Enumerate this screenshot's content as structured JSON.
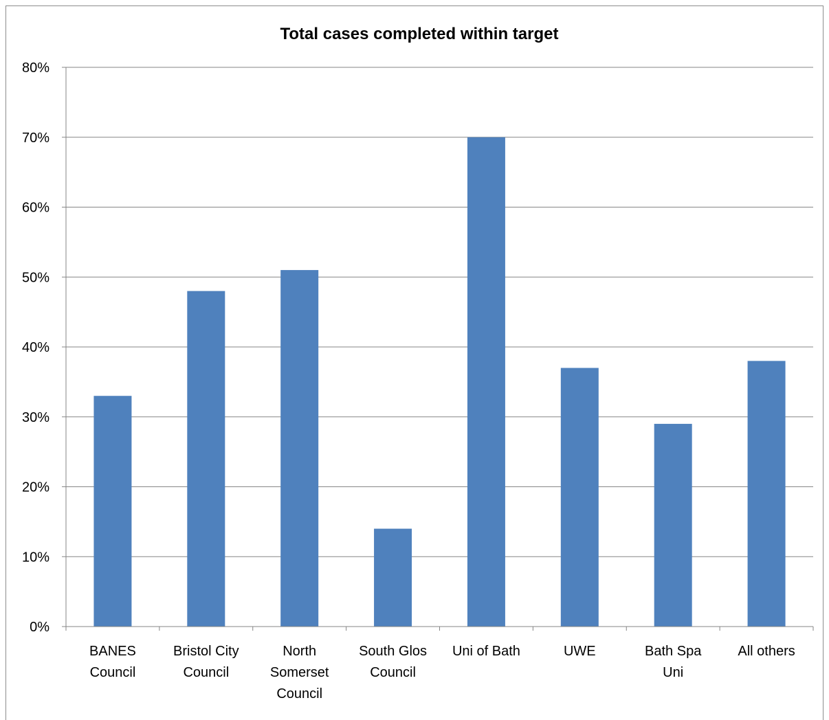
{
  "chart_data": {
    "type": "bar",
    "title": "Total cases completed within target",
    "categories": [
      [
        "BANES",
        "Council"
      ],
      [
        "Bristol City",
        "Council"
      ],
      [
        "North",
        "Somerset",
        "Council"
      ],
      [
        "South Glos",
        "Council"
      ],
      [
        "Uni of Bath"
      ],
      [
        "UWE"
      ],
      [
        "Bath Spa",
        "Uni"
      ],
      [
        "All others"
      ]
    ],
    "values": [
      33,
      48,
      51,
      14,
      70,
      37,
      29,
      38
    ],
    "ylim": [
      0,
      80
    ],
    "yticks": [
      "0%",
      "10%",
      "20%",
      "30%",
      "40%",
      "50%",
      "60%",
      "70%",
      "80%"
    ],
    "grid": true,
    "legend": "none",
    "bar_color": "#4f81bd"
  }
}
